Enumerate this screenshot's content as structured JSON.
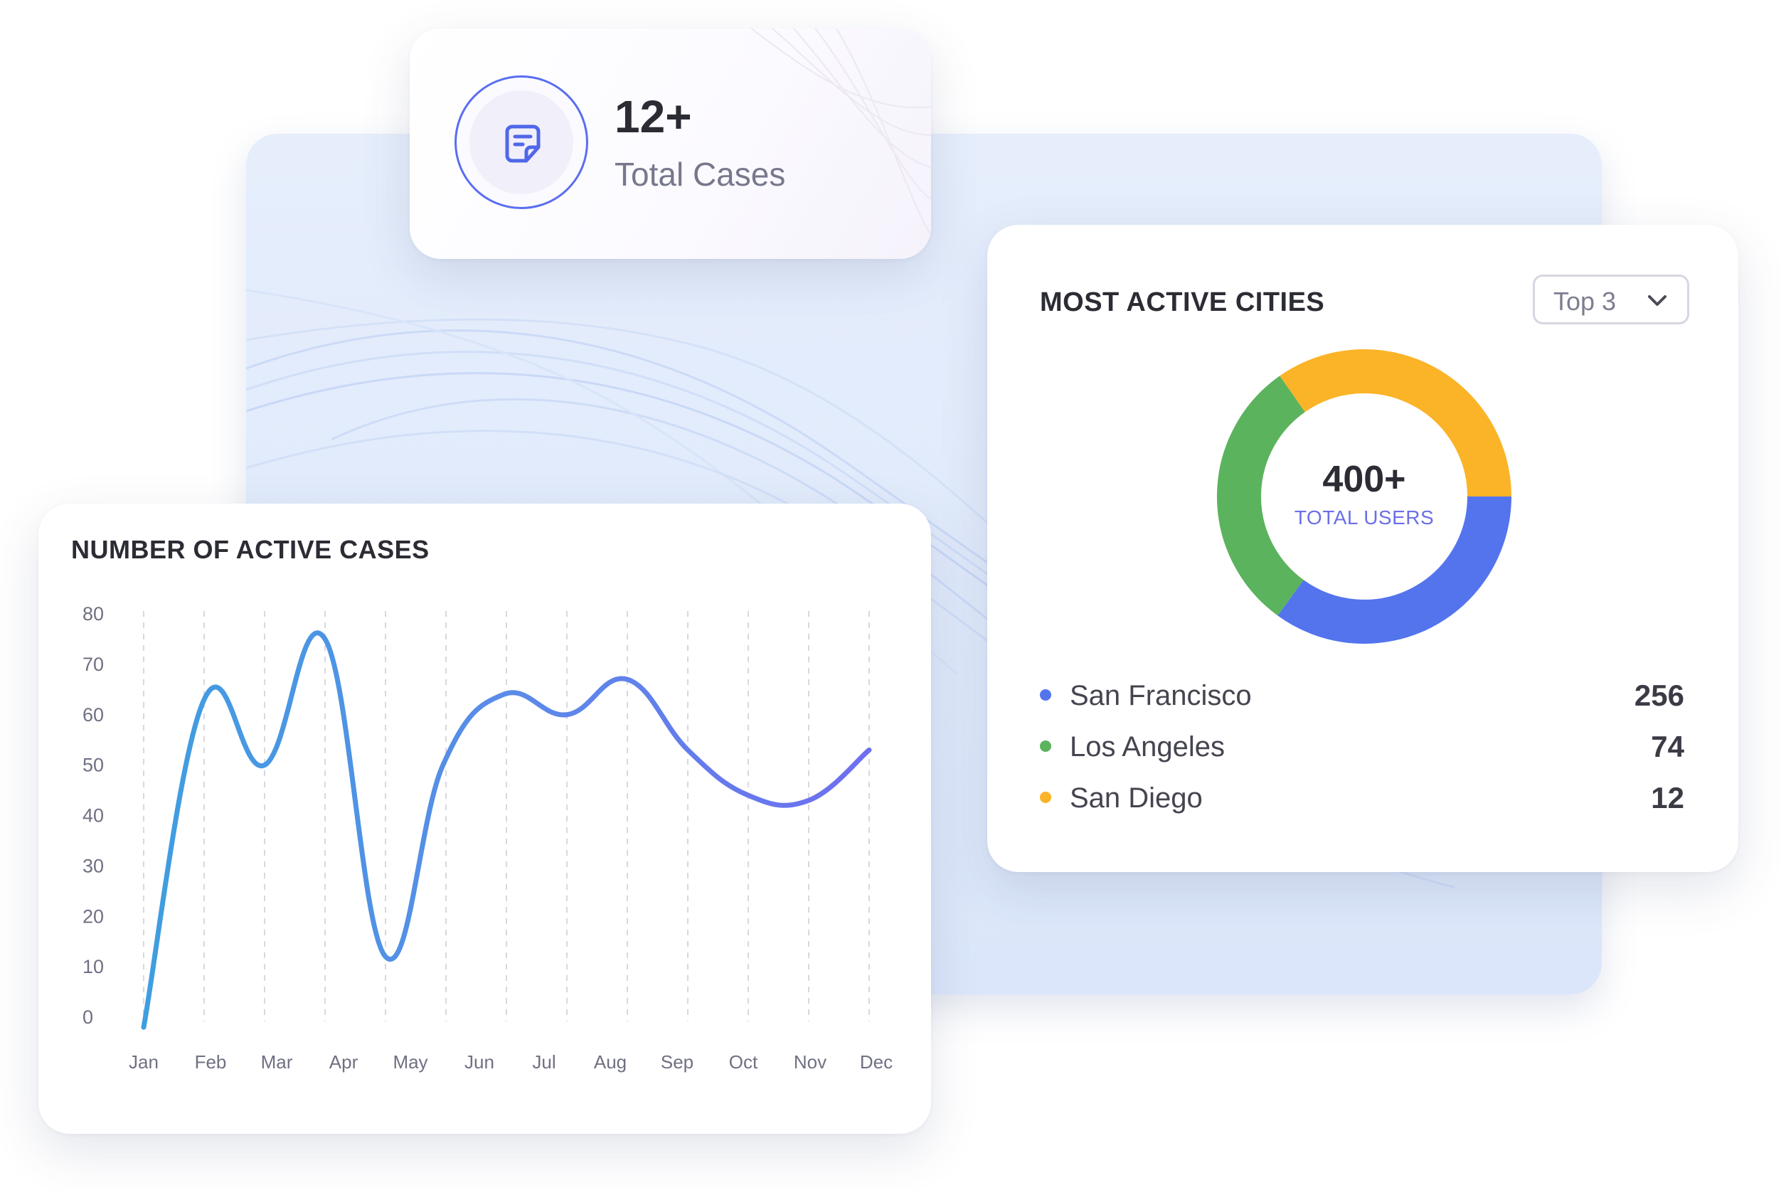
{
  "total_cases": {
    "value": "12+",
    "label": "Total Cases",
    "icon": "note-icon"
  },
  "cities": {
    "title": "MOST ACTIVE CITIES",
    "filter": {
      "selected": "Top 3",
      "icon": "chevron-down-icon"
    },
    "total_value": "400+",
    "total_label": "TOTAL USERS",
    "items": [
      {
        "name": "San Francisco",
        "value": "256",
        "color": "#5474ee"
      },
      {
        "name": "Los Angeles",
        "value": "74",
        "color": "#5cb35d"
      },
      {
        "name": "San Diego",
        "value": "12",
        "color": "#fbb327"
      }
    ]
  },
  "active_cases": {
    "title": "NUMBER OF ACTIVE CASES"
  },
  "chart_data": {
    "type": "line",
    "title": "NUMBER OF ACTIVE CASES",
    "xlabel": "",
    "ylabel": "",
    "x": [
      "Jan",
      "Feb",
      "Mar",
      "Apr",
      "May",
      "Jun",
      "Jul",
      "Aug",
      "Sep",
      "Oct",
      "Nov",
      "Dec"
    ],
    "ticks_y": [
      0,
      10,
      20,
      30,
      40,
      50,
      60,
      70,
      80
    ],
    "ylim": [
      0,
      80
    ],
    "grid": "vertical dashed",
    "series": [
      {
        "name": "",
        "points": [
          {
            "x": 0,
            "y": -2
          },
          {
            "x": 1,
            "y": 63
          },
          {
            "x": 2,
            "y": 50
          },
          {
            "x": 3,
            "y": 75
          },
          {
            "x": 4,
            "y": 12
          },
          {
            "x": 4.95,
            "y": 50
          },
          {
            "x": 5.95,
            "y": 64
          },
          {
            "x": 7,
            "y": 60
          },
          {
            "x": 8,
            "y": 67
          },
          {
            "x": 9,
            "y": 53
          },
          {
            "x": 10,
            "y": 44
          },
          {
            "x": 11,
            "y": 43
          },
          {
            "x": 12,
            "y": 53
          }
        ]
      }
    ]
  }
}
